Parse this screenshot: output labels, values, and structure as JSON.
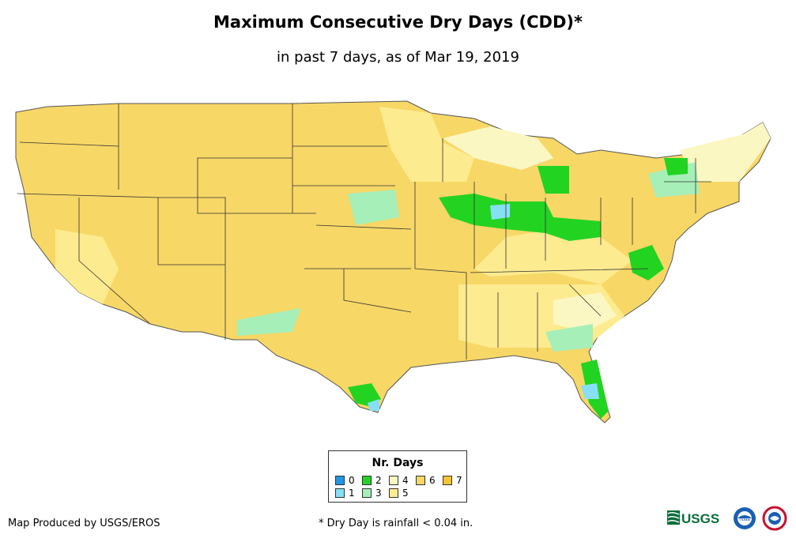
{
  "title": "Maximum Consecutive Dry Days (CDD)*",
  "subtitle": "in past 7 days, as of Mar 19, 2019",
  "legend": {
    "title": "Nr. Days",
    "items": [
      {
        "label": "0",
        "color": "#1f97e5"
      },
      {
        "label": "1",
        "color": "#86e0f5"
      },
      {
        "label": "2",
        "color": "#22d322"
      },
      {
        "label": "3",
        "color": "#a6efb8"
      },
      {
        "label": "4",
        "color": "#fbf7c2"
      },
      {
        "label": "5",
        "color": "#fdeb8f"
      },
      {
        "label": "6",
        "color": "#f7d766"
      },
      {
        "label": "7",
        "color": "#f7c431"
      }
    ]
  },
  "footer": {
    "producer": "Map Produced by USGS/EROS",
    "note": "* Dry Day is rainfall < 0.04 in."
  },
  "logos": {
    "usgs": "USGS",
    "noaa": "noaa"
  }
}
